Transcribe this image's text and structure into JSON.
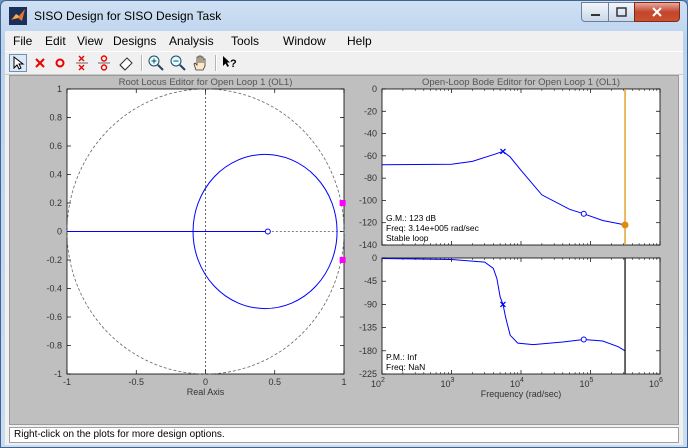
{
  "window": {
    "title": "SISO Design for SISO Design Task"
  },
  "menu": [
    {
      "label": "File"
    },
    {
      "label": "Edit"
    },
    {
      "label": "View"
    },
    {
      "label": "Designs"
    },
    {
      "label": "Analysis"
    },
    {
      "label": "Tools"
    },
    {
      "label": "Window"
    },
    {
      "label": "Help"
    }
  ],
  "toolbar": [
    "select-arrow-icon",
    "add-pole-icon",
    "add-zero-icon",
    "add-complex-pole-icon",
    "add-complex-zero-icon",
    "eraser-icon",
    "zoom-in-icon",
    "zoom-out-icon",
    "pan-hand-icon",
    "whats-this-help-icon"
  ],
  "root_locus": {
    "title": "Root Locus Editor for Open Loop 1 (OL1)",
    "xlabel": "Real Axis",
    "xticks": [
      "-1",
      "-0.5",
      "0",
      "0.5",
      "1"
    ],
    "yticks": [
      "1",
      "0.8",
      "0.6",
      "0.4",
      "0.2",
      "0",
      "-0.2",
      "-0.4",
      "-0.6",
      "-0.8",
      "-1"
    ],
    "xlim": [
      -1,
      1
    ],
    "ylim": [
      -1,
      1
    ],
    "unit_circle": true,
    "locus_circle_center": [
      0.43,
      0
    ],
    "locus_circle_radius": 0.52,
    "zero": [
      0.45,
      0
    ],
    "closed_loop_poles": [
      [
        0.99,
        0.05
      ],
      [
        0.99,
        -0.05
      ]
    ],
    "colors": {
      "locus": "#0000ff",
      "poles": "#ff00ff"
    }
  },
  "bode": {
    "title": "Open-Loop Bode Editor for Open Loop 1 (OL1)",
    "xlabel": "Frequency (rad/sec)",
    "mag": {
      "yticks": [
        "0",
        "-20",
        "-40",
        "-60",
        "-80",
        "-100",
        "-120",
        "-140"
      ],
      "ylim": [
        -140,
        0
      ],
      "annotation": [
        "G.M.: 123 dB",
        "Freq: 3.14e+005 rad/sec",
        "Stable loop"
      ],
      "curve": [
        [
          100,
          -68
        ],
        [
          1000,
          -67.5
        ],
        [
          2000,
          -65
        ],
        [
          4000,
          -59
        ],
        [
          5500,
          -56
        ],
        [
          7000,
          -61
        ],
        [
          10000,
          -73
        ],
        [
          20000,
          -95
        ],
        [
          50000,
          -108
        ],
        [
          80000,
          -112
        ],
        [
          150000,
          -118
        ],
        [
          314000,
          -122
        ]
      ],
      "markers": {
        "pole_x": [
          5500,
          -56
        ],
        "zero_o": [
          80000,
          -112
        ],
        "gm_dot": [
          314000,
          -122
        ]
      }
    },
    "phase": {
      "yticks": [
        "0",
        "-45",
        "-90",
        "-135",
        "-180",
        "-225"
      ],
      "ylim": [
        -225,
        0
      ],
      "annotation": [
        "P.M.: Inf",
        "Freq: NaN"
      ],
      "curve": [
        [
          100,
          -1
        ],
        [
          1000,
          -3
        ],
        [
          3000,
          -8
        ],
        [
          4000,
          -20
        ],
        [
          4500,
          -40
        ],
        [
          5000,
          -75
        ],
        [
          5500,
          -90
        ],
        [
          6000,
          -115
        ],
        [
          7000,
          -150
        ],
        [
          9000,
          -165
        ],
        [
          15000,
          -168
        ],
        [
          40000,
          -163
        ],
        [
          80000,
          -158
        ],
        [
          150000,
          -161
        ],
        [
          250000,
          -172
        ],
        [
          314000,
          -180
        ]
      ],
      "markers": {
        "pole_x": [
          5500,
          -90
        ],
        "zero_o": [
          80000,
          -158
        ]
      }
    },
    "xticks": [
      {
        "base": "10",
        "exp": "2"
      },
      {
        "base": "10",
        "exp": "3"
      },
      {
        "base": "10",
        "exp": "4"
      },
      {
        "base": "10",
        "exp": "5"
      },
      {
        "base": "10",
        "exp": "6"
      }
    ],
    "xlim": [
      100,
      1000000
    ],
    "crossover_freq": 314000,
    "colors": {
      "curve": "#0000ff",
      "gm_line": "#d98c00",
      "gm_dot": "#e08a10"
    }
  },
  "status": "Right-click on the plots for more design options."
}
